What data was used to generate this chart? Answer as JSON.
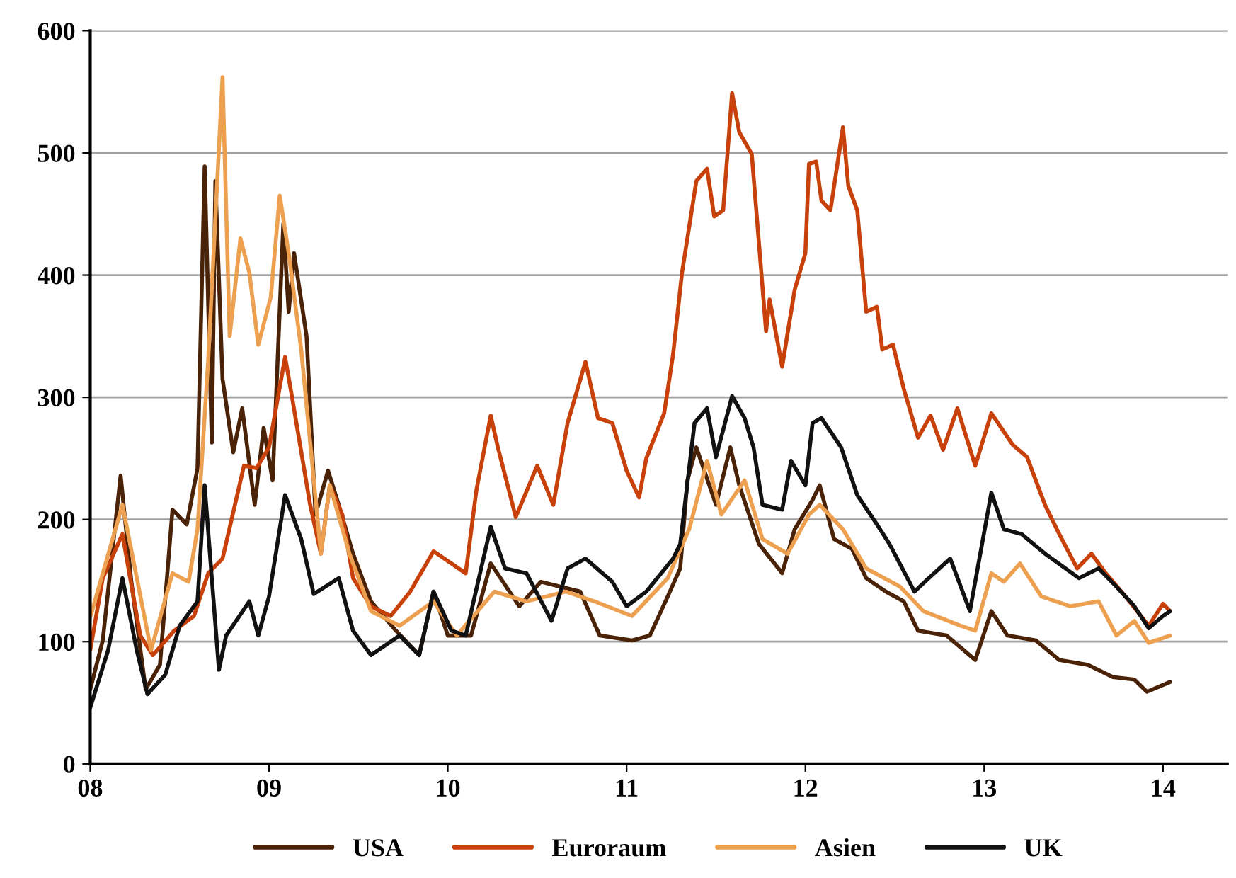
{
  "chart_data": {
    "type": "line",
    "xlim": [
      2008,
      2014.36
    ],
    "xticks": [
      {
        "value": 2008,
        "label": "08"
      },
      {
        "value": 2009,
        "label": "09"
      },
      {
        "value": 2010,
        "label": "10"
      },
      {
        "value": 2011,
        "label": "11"
      },
      {
        "value": 2012,
        "label": "12"
      },
      {
        "value": 2013,
        "label": "13"
      },
      {
        "value": 2014,
        "label": "14"
      }
    ],
    "ylim": [
      0,
      600
    ],
    "yticks": [
      0,
      100,
      200,
      300,
      400,
      500,
      600
    ],
    "grid": "y",
    "legend": "bottom",
    "marker": "none",
    "line_style": "solid",
    "series": [
      {
        "name": "USA",
        "color": "#4a2208",
        "x": [
          2008.0,
          2008.07,
          2008.17,
          2008.23,
          2008.31,
          2008.39,
          2008.46,
          2008.54,
          2008.6,
          2008.64,
          2008.68,
          2008.7,
          2008.74,
          2008.8,
          2008.85,
          2008.92,
          2008.97,
          2009.02,
          2009.08,
          2009.11,
          2009.14,
          2009.21,
          2009.26,
          2009.33,
          2009.39,
          2009.47,
          2009.57,
          2009.71,
          2009.84,
          2009.92,
          2010.0,
          2010.13,
          2010.24,
          2010.4,
          2010.52,
          2010.74,
          2010.85,
          2011.03,
          2011.13,
          2011.23,
          2011.3,
          2011.34,
          2011.39,
          2011.5,
          2011.58,
          2011.63,
          2011.74,
          2011.87,
          2011.94,
          2012.04,
          2012.08,
          2012.16,
          2012.26,
          2012.34,
          2012.45,
          2012.55,
          2012.63,
          2012.79,
          2012.95,
          2013.04,
          2013.13,
          2013.29,
          2013.42,
          2013.58,
          2013.72,
          2013.84,
          2013.91,
          2014.04
        ],
        "values": [
          61,
          101,
          236,
          149,
          61,
          81,
          208,
          196,
          242,
          489,
          263,
          477,
          315,
          255,
          291,
          212,
          275,
          232,
          442,
          370,
          418,
          350,
          204,
          240,
          212,
          172,
          133,
          109,
          89,
          141,
          105,
          105,
          164,
          129,
          149,
          141,
          105,
          101,
          105,
          137,
          160,
          232,
          259,
          212,
          259,
          228,
          180,
          156,
          192,
          216,
          228,
          184,
          176,
          152,
          141,
          133,
          109,
          105,
          85,
          125,
          105,
          101,
          85,
          81,
          71,
          69,
          59,
          67
        ]
      },
      {
        "name": "Euroraum",
        "color": "#c8400a",
        "x": [
          2008.0,
          2008.07,
          2008.18,
          2008.28,
          2008.35,
          2008.47,
          2008.58,
          2008.66,
          2008.74,
          2008.86,
          2008.93,
          2009.0,
          2009.09,
          2009.13,
          2009.23,
          2009.29,
          2009.34,
          2009.41,
          2009.47,
          2009.57,
          2009.68,
          2009.79,
          2009.92,
          2010.1,
          2010.16,
          2010.24,
          2010.28,
          2010.38,
          2010.5,
          2010.59,
          2010.67,
          2010.77,
          2010.84,
          2010.92,
          2011.0,
          2011.07,
          2011.11,
          2011.21,
          2011.26,
          2011.31,
          2011.39,
          2011.45,
          2011.49,
          2011.54,
          2011.59,
          2011.63,
          2011.7,
          2011.78,
          2011.8,
          2011.87,
          2011.94,
          2012.0,
          2012.02,
          2012.06,
          2012.09,
          2012.14,
          2012.21,
          2012.24,
          2012.29,
          2012.34,
          2012.4,
          2012.43,
          2012.49,
          2012.55,
          2012.63,
          2012.7,
          2012.77,
          2012.85,
          2012.95,
          2013.04,
          2013.16,
          2013.24,
          2013.34,
          2013.42,
          2013.52,
          2013.6,
          2013.68,
          2013.79,
          2013.92,
          2014.0,
          2014.04
        ],
        "values": [
          93,
          152,
          188,
          105,
          89,
          109,
          121,
          156,
          168,
          244,
          242,
          259,
          333,
          299,
          212,
          172,
          228,
          204,
          152,
          129,
          121,
          141,
          174,
          156,
          224,
          285,
          259,
          202,
          244,
          212,
          279,
          329,
          283,
          279,
          240,
          218,
          250,
          287,
          335,
          402,
          477,
          487,
          448,
          453,
          549,
          517,
          499,
          354,
          380,
          325,
          388,
          418,
          491,
          493,
          461,
          453,
          521,
          473,
          453,
          370,
          374,
          339,
          343,
          307,
          267,
          285,
          257,
          291,
          244,
          287,
          261,
          251,
          212,
          188,
          160,
          172,
          156,
          137,
          113,
          131,
          125
        ]
      },
      {
        "name": "Asien",
        "color": "#eda050",
        "x": [
          2008.0,
          2008.18,
          2008.34,
          2008.46,
          2008.55,
          2008.6,
          2008.66,
          2008.74,
          2008.78,
          2008.84,
          2008.89,
          2008.94,
          2009.01,
          2009.06,
          2009.11,
          2009.18,
          2009.29,
          2009.34,
          2009.45,
          2009.57,
          2009.73,
          2009.92,
          2010.05,
          2010.26,
          2010.44,
          2010.66,
          2010.82,
          2011.03,
          2011.23,
          2011.35,
          2011.45,
          2011.53,
          2011.66,
          2011.76,
          2011.9,
          2012.02,
          2012.08,
          2012.21,
          2012.34,
          2012.53,
          2012.66,
          2012.87,
          2012.95,
          2013.04,
          2013.11,
          2013.2,
          2013.32,
          2013.48,
          2013.64,
          2013.74,
          2013.84,
          2013.92,
          2014.04
        ],
        "values": [
          120,
          212,
          93,
          156,
          149,
          192,
          331,
          562,
          350,
          430,
          402,
          343,
          382,
          465,
          418,
          339,
          172,
          228,
          172,
          125,
          113,
          133,
          105,
          141,
          133,
          141,
          133,
          121,
          152,
          192,
          248,
          204,
          232,
          184,
          172,
          204,
          212,
          192,
          160,
          145,
          125,
          113,
          109,
          156,
          149,
          164,
          137,
          129,
          133,
          105,
          117,
          99,
          105
        ]
      },
      {
        "name": "UK",
        "color": "#111111",
        "x": [
          2008.0,
          2008.1,
          2008.18,
          2008.26,
          2008.32,
          2008.42,
          2008.5,
          2008.6,
          2008.64,
          2008.68,
          2008.72,
          2008.76,
          2008.89,
          2008.94,
          2009.0,
          2009.09,
          2009.18,
          2009.25,
          2009.39,
          2009.47,
          2009.57,
          2009.73,
          2009.84,
          2009.92,
          2010.02,
          2010.1,
          2010.24,
          2010.32,
          2010.44,
          2010.58,
          2010.67,
          2010.77,
          2010.92,
          2011.0,
          2011.11,
          2011.26,
          2011.3,
          2011.38,
          2011.45,
          2011.5,
          2011.59,
          2011.66,
          2011.71,
          2011.76,
          2011.87,
          2011.92,
          2012.0,
          2012.04,
          2012.09,
          2012.2,
          2012.29,
          2012.4,
          2012.47,
          2012.61,
          2012.69,
          2012.81,
          2012.92,
          2013.04,
          2013.11,
          2013.21,
          2013.34,
          2013.53,
          2013.64,
          2013.74,
          2013.84,
          2013.92,
          2014.0,
          2014.04
        ],
        "values": [
          46,
          93,
          152,
          93,
          57,
          73,
          113,
          133,
          228,
          152,
          77,
          105,
          133,
          105,
          137,
          220,
          184,
          139,
          152,
          109,
          89,
          105,
          89,
          141,
          109,
          105,
          194,
          160,
          156,
          117,
          160,
          168,
          149,
          129,
          141,
          168,
          180,
          279,
          291,
          251,
          301,
          283,
          259,
          212,
          208,
          248,
          228,
          279,
          283,
          259,
          220,
          196,
          180,
          141,
          152,
          168,
          125,
          222,
          192,
          188,
          172,
          152,
          160,
          145,
          129,
          111,
          121,
          125
        ]
      }
    ]
  }
}
